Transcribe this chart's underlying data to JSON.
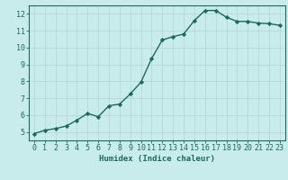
{
  "x": [
    0,
    1,
    2,
    3,
    4,
    5,
    6,
    7,
    8,
    9,
    10,
    11,
    12,
    13,
    14,
    15,
    16,
    17,
    18,
    19,
    20,
    21,
    22,
    23
  ],
  "y": [
    4.9,
    5.1,
    5.2,
    5.35,
    5.7,
    6.1,
    5.9,
    6.55,
    6.65,
    7.25,
    7.95,
    9.35,
    10.45,
    10.65,
    10.8,
    11.6,
    12.2,
    12.2,
    11.8,
    11.55,
    11.55,
    11.45,
    11.42,
    11.32
  ],
  "line_color": "#1a6b5a",
  "bg_color": "#c8ecec",
  "grid_color": "#b8d8d8",
  "xlabel": "Humidex (Indice chaleur)",
  "xlim": [
    -0.5,
    23.5
  ],
  "ylim": [
    4.5,
    12.5
  ],
  "yticks": [
    5,
    6,
    7,
    8,
    9,
    10,
    11,
    12
  ],
  "xticks": [
    0,
    1,
    2,
    3,
    4,
    5,
    6,
    7,
    8,
    9,
    10,
    11,
    12,
    13,
    14,
    15,
    16,
    17,
    18,
    19,
    20,
    21,
    22,
    23
  ],
  "marker": "D",
  "marker_size": 2.2,
  "line_width": 1.0,
  "font_color": "#1a6b5a",
  "xlabel_fontsize": 6.5,
  "tick_fontsize": 6.0
}
